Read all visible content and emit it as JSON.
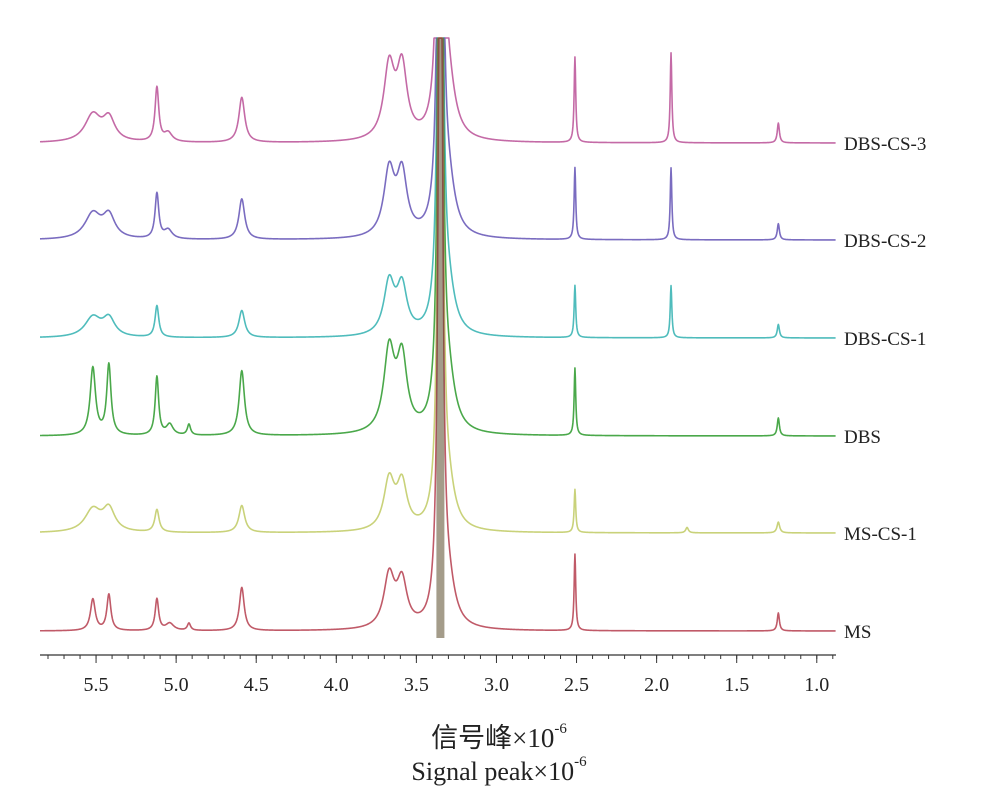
{
  "chart_data": {
    "type": "line",
    "title": "",
    "xlabel_cn": "信号峰×10",
    "xlabel_en": "Signal  peak×10",
    "xlabel_exponent": "-6",
    "xlim": [
      5.85,
      0.88
    ],
    "x_reversed": true,
    "ticks": [
      "5.5",
      "5.0",
      "4.5",
      "4.0",
      "3.5",
      "3.0",
      "2.5",
      "2.0",
      "1.5",
      "1.0"
    ],
    "tick_values": [
      5.5,
      5.0,
      4.5,
      4.0,
      3.5,
      3.0,
      2.5,
      2.0,
      1.5,
      1.0
    ],
    "grid": false,
    "legend": "none",
    "series": [
      {
        "name": "DBS-CS-3",
        "color": "#c46aa6",
        "peaks": [
          {
            "x": 5.52,
            "h": 0.3,
            "w": 0.06
          },
          {
            "x": 5.42,
            "h": 0.25,
            "w": 0.045
          },
          {
            "x": 5.12,
            "h": 0.6,
            "w": 0.014
          },
          {
            "x": 5.05,
            "h": 0.1,
            "w": 0.03
          },
          {
            "x": 4.59,
            "h": 0.5,
            "w": 0.022
          },
          {
            "x": 3.67,
            "h": 0.8,
            "w": 0.04
          },
          {
            "x": 3.59,
            "h": 0.78,
            "w": 0.038
          },
          {
            "x": 3.3,
            "h": 0.55,
            "w": 0.05
          },
          {
            "x": 2.51,
            "h": 0.95,
            "w": 0.006
          },
          {
            "x": 1.91,
            "h": 1.0,
            "w": 0.006
          },
          {
            "x": 1.24,
            "h": 0.22,
            "w": 0.008
          }
        ]
      },
      {
        "name": "DBS-CS-2",
        "color": "#7a6cc0",
        "peaks": [
          {
            "x": 5.52,
            "h": 0.28,
            "w": 0.06
          },
          {
            "x": 5.42,
            "h": 0.25,
            "w": 0.045
          },
          {
            "x": 5.12,
            "h": 0.5,
            "w": 0.014
          },
          {
            "x": 5.05,
            "h": 0.1,
            "w": 0.03
          },
          {
            "x": 4.59,
            "h": 0.45,
            "w": 0.022
          },
          {
            "x": 3.67,
            "h": 0.72,
            "w": 0.04
          },
          {
            "x": 3.59,
            "h": 0.68,
            "w": 0.038
          },
          {
            "x": 3.3,
            "h": 0.5,
            "w": 0.05
          },
          {
            "x": 2.51,
            "h": 0.8,
            "w": 0.006
          },
          {
            "x": 1.91,
            "h": 0.8,
            "w": 0.006
          },
          {
            "x": 1.24,
            "h": 0.18,
            "w": 0.008
          }
        ]
      },
      {
        "name": "DBS-CS-1",
        "color": "#4fbcbc",
        "peaks": [
          {
            "x": 5.52,
            "h": 0.22,
            "w": 0.06
          },
          {
            "x": 5.42,
            "h": 0.2,
            "w": 0.045
          },
          {
            "x": 5.12,
            "h": 0.35,
            "w": 0.014
          },
          {
            "x": 4.59,
            "h": 0.3,
            "w": 0.022
          },
          {
            "x": 3.67,
            "h": 0.58,
            "w": 0.04
          },
          {
            "x": 3.59,
            "h": 0.52,
            "w": 0.038
          },
          {
            "x": 3.3,
            "h": 0.4,
            "w": 0.05
          },
          {
            "x": 2.51,
            "h": 0.58,
            "w": 0.006
          },
          {
            "x": 1.91,
            "h": 0.58,
            "w": 0.006
          },
          {
            "x": 1.24,
            "h": 0.15,
            "w": 0.008
          }
        ]
      },
      {
        "name": "DBS",
        "color": "#4aa84a",
        "peaks": [
          {
            "x": 5.52,
            "h": 0.75,
            "w": 0.02
          },
          {
            "x": 5.42,
            "h": 0.78,
            "w": 0.016
          },
          {
            "x": 5.12,
            "h": 0.65,
            "w": 0.013
          },
          {
            "x": 5.04,
            "h": 0.12,
            "w": 0.025
          },
          {
            "x": 4.92,
            "h": 0.12,
            "w": 0.012
          },
          {
            "x": 4.59,
            "h": 0.72,
            "w": 0.02
          },
          {
            "x": 3.67,
            "h": 0.9,
            "w": 0.04
          },
          {
            "x": 3.59,
            "h": 0.8,
            "w": 0.038
          },
          {
            "x": 3.3,
            "h": 0.5,
            "w": 0.05
          },
          {
            "x": 2.51,
            "h": 0.75,
            "w": 0.006
          },
          {
            "x": 1.24,
            "h": 0.2,
            "w": 0.008
          }
        ]
      },
      {
        "name": "MS-CS-1",
        "color": "#c9d27a",
        "peaks": [
          {
            "x": 5.52,
            "h": 0.25,
            "w": 0.06
          },
          {
            "x": 5.42,
            "h": 0.25,
            "w": 0.045
          },
          {
            "x": 5.12,
            "h": 0.25,
            "w": 0.016
          },
          {
            "x": 4.59,
            "h": 0.3,
            "w": 0.022
          },
          {
            "x": 3.67,
            "h": 0.55,
            "w": 0.04
          },
          {
            "x": 3.59,
            "h": 0.5,
            "w": 0.038
          },
          {
            "x": 3.3,
            "h": 0.38,
            "w": 0.05
          },
          {
            "x": 2.51,
            "h": 0.48,
            "w": 0.006
          },
          {
            "x": 1.81,
            "h": 0.06,
            "w": 0.01
          },
          {
            "x": 1.24,
            "h": 0.12,
            "w": 0.01
          }
        ]
      },
      {
        "name": "MS",
        "color": "#c05a68",
        "peaks": [
          {
            "x": 5.52,
            "h": 0.35,
            "w": 0.018
          },
          {
            "x": 5.42,
            "h": 0.4,
            "w": 0.015
          },
          {
            "x": 5.12,
            "h": 0.35,
            "w": 0.013
          },
          {
            "x": 5.04,
            "h": 0.08,
            "w": 0.03
          },
          {
            "x": 4.92,
            "h": 0.08,
            "w": 0.012
          },
          {
            "x": 4.59,
            "h": 0.48,
            "w": 0.018
          },
          {
            "x": 3.67,
            "h": 0.58,
            "w": 0.04
          },
          {
            "x": 3.59,
            "h": 0.5,
            "w": 0.038
          },
          {
            "x": 3.3,
            "h": 0.4,
            "w": 0.05
          },
          {
            "x": 2.51,
            "h": 0.85,
            "w": 0.006
          },
          {
            "x": 1.24,
            "h": 0.2,
            "w": 0.008
          }
        ]
      }
    ],
    "solvent_peak": {
      "x": 3.35,
      "clipped": true
    }
  }
}
